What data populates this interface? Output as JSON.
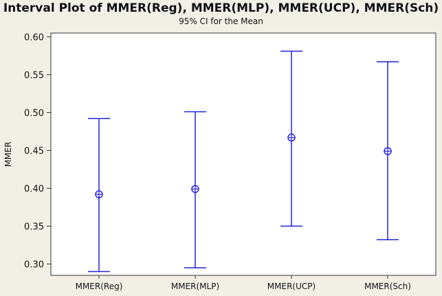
{
  "chart_data": {
    "type": "interval",
    "title": "Interval Plot of MMER(Reg), MMER(MLP), MMER(UCP), MMER(Sch)",
    "subtitle": "95% CI for the Mean",
    "ylabel": "MMER",
    "xlabel": "",
    "ylim": [
      0.285,
      0.605
    ],
    "yticks": [
      "0.30",
      "0.35",
      "0.40",
      "0.45",
      "0.50",
      "0.55",
      "0.60"
    ],
    "categories": [
      "MMER(Reg)",
      "MMER(MLP)",
      "MMER(UCP)",
      "MMER(Sch)"
    ],
    "series": [
      {
        "mean": [
          0.392,
          0.399,
          0.467,
          0.449
        ],
        "lower": [
          0.29,
          0.295,
          0.35,
          0.332
        ],
        "upper": [
          0.492,
          0.501,
          0.581,
          0.567
        ]
      }
    ],
    "grid": false,
    "colors": {
      "interval": "#2222dd",
      "background": "#f2f0e6",
      "plot_area": "#ffffff"
    }
  }
}
